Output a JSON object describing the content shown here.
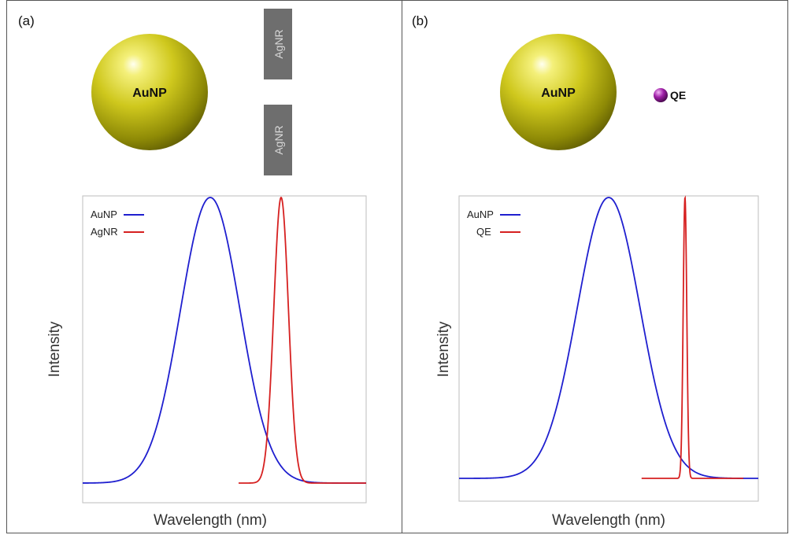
{
  "panel_a": {
    "label": "(a)",
    "sphere_label": "AuNP",
    "rod_top_label": "AgNR",
    "rod_bottom_label": "AgNR"
  },
  "panel_b": {
    "label": "(b)",
    "sphere_label": "AuNP",
    "qe_label": "QE"
  },
  "colors": {
    "sphere": "#c7c31a",
    "rod": "#6e6e6e",
    "rod_text": "#d8d8d8",
    "qe": "#a020a8",
    "series_blue": "#1f1fcf",
    "series_red": "#d62020"
  },
  "chart_data": [
    {
      "type": "line",
      "xlabel": "Wavelength (nm)",
      "ylabel": "Intensity",
      "xlim": [
        0,
        1
      ],
      "ylim": [
        0,
        1
      ],
      "grid": false,
      "legend_position": "top-left",
      "series": [
        {
          "name": "AuNP",
          "color": "#1f1fcf",
          "shape": "gaussian",
          "center": 0.45,
          "width": 0.105,
          "baseline": 0.0,
          "peak": 1.0,
          "x_start": 0.0,
          "x_end": 1.0
        },
        {
          "name": "AgNR",
          "color": "#d62020",
          "shape": "gaussian",
          "center": 0.7,
          "width": 0.026,
          "baseline": 0.0,
          "peak": 1.0,
          "x_start": 0.55,
          "x_end": 1.0
        }
      ]
    },
    {
      "type": "line",
      "xlabel": "Wavelength (nm)",
      "ylabel": "Intensity",
      "xlim": [
        0,
        1
      ],
      "ylim": [
        0,
        1
      ],
      "grid": false,
      "legend_position": "top-left",
      "series": [
        {
          "name": "AuNP",
          "color": "#1f1fcf",
          "shape": "gaussian",
          "center": 0.5,
          "width": 0.105,
          "baseline": 0.0,
          "peak": 1.0,
          "x_start": 0.0,
          "x_end": 1.0
        },
        {
          "name": "QE",
          "color": "#d62020",
          "shape": "gaussian",
          "center": 0.755,
          "width": 0.006,
          "baseline": 0.0,
          "peak": 1.0,
          "x_start": 0.61,
          "x_end": 0.95
        }
      ]
    }
  ]
}
